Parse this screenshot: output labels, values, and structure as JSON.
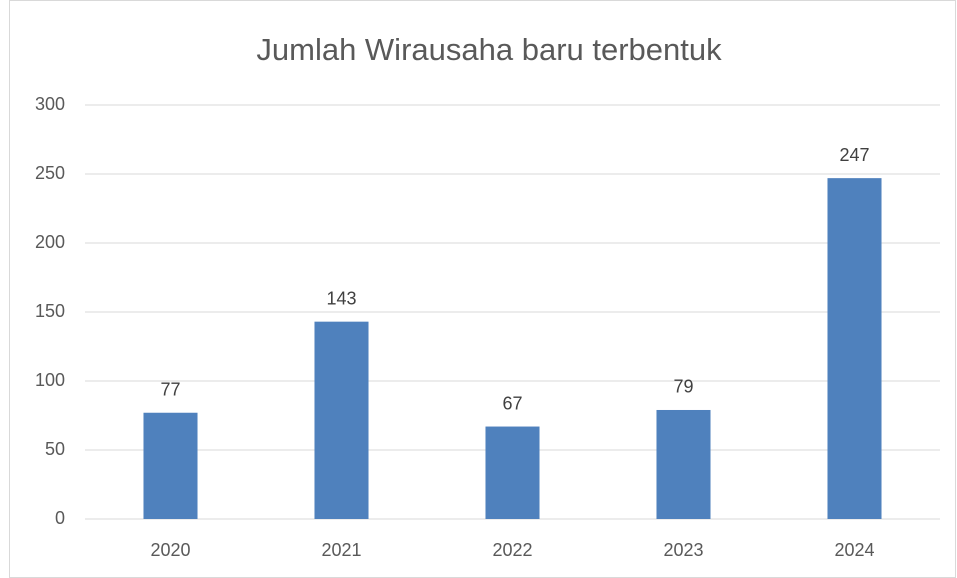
{
  "chart_data": {
    "type": "bar",
    "title": "Jumlah Wirausaha baru terbentuk",
    "categories": [
      "2020",
      "2021",
      "2022",
      "2023",
      "2024"
    ],
    "values": [
      77,
      143,
      67,
      79,
      247
    ],
    "color": "#4f81bd",
    "ylim": [
      0,
      300
    ],
    "yticks": [
      0,
      50,
      100,
      150,
      200,
      250,
      300
    ],
    "grid": true,
    "data_labels": true
  }
}
